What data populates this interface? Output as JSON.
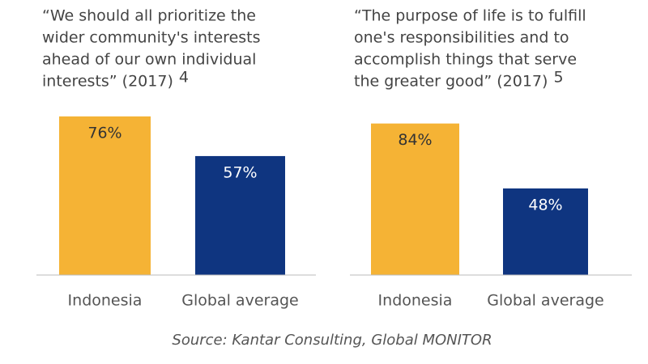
{
  "chart_data": [
    {
      "type": "bar",
      "title_lines": [
        "“We should all prioritize the",
        "wider community's interests",
        "ahead of our own individual",
        "interests” (2017)"
      ],
      "footnote": "4",
      "categories": [
        "Indonesia",
        "Global average"
      ],
      "values": [
        76,
        57
      ],
      "value_labels": [
        "76%",
        "57%"
      ],
      "colors": [
        "#f5b335",
        "#0f3580"
      ],
      "label_colors": [
        "#333333",
        "#ffffff"
      ]
    },
    {
      "type": "bar",
      "title_lines": [
        "“The purpose of life is to fulfill",
        "one's responsibilities and to",
        "accomplish things that serve",
        "the greater good” (2017)"
      ],
      "footnote": "5",
      "categories": [
        "Indonesia",
        "Global average"
      ],
      "values": [
        84,
        48
      ],
      "value_labels": [
        "84%",
        "48%"
      ],
      "colors": [
        "#f5b335",
        "#0f3580"
      ],
      "label_colors": [
        "#333333",
        "#ffffff"
      ]
    }
  ],
  "source": "Source: Kantar Consulting, Global MONITOR"
}
